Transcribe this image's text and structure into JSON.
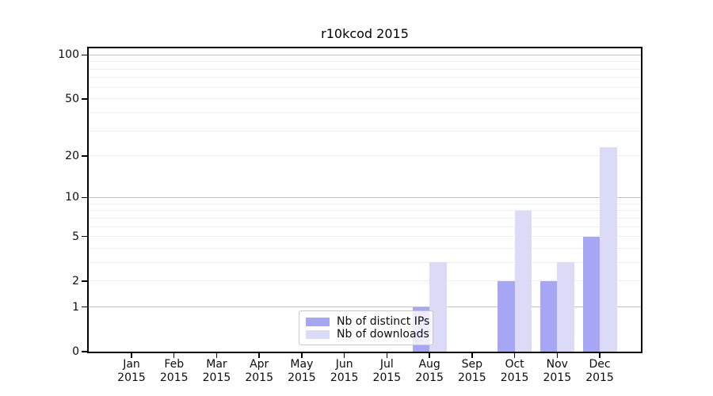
{
  "title": "r10kcod 2015",
  "chart_data": {
    "type": "bar",
    "title": "r10kcod 2015",
    "x_months": [
      "Jan",
      "Feb",
      "Mar",
      "Apr",
      "May",
      "Jun",
      "Jul",
      "Aug",
      "Sep",
      "Oct",
      "Nov",
      "Dec"
    ],
    "x_year": "2015",
    "series": [
      {
        "name": "Nb of distinct IPs",
        "color": "#a6a6f5",
        "values": [
          0,
          0,
          0,
          0,
          0,
          0,
          0,
          1,
          0,
          2,
          2,
          5
        ]
      },
      {
        "name": "Nb of downloads",
        "color": "#dbdbf8",
        "values": [
          0,
          0,
          0,
          0,
          0,
          0,
          0,
          3,
          0,
          8,
          3,
          23
        ]
      }
    ],
    "yscale": "log1p",
    "yticks": [
      0,
      1,
      2,
      5,
      10,
      20,
      50,
      100
    ],
    "ylim": [
      0,
      111
    ],
    "grid": {
      "major_values": [
        1,
        10,
        100
      ],
      "minor_values": [
        2,
        3,
        4,
        5,
        6,
        7,
        8,
        9,
        20,
        30,
        40,
        50,
        60,
        70,
        80,
        90
      ],
      "major_color": "#c2c2c2",
      "minor_color": "#efefef"
    },
    "legend_position": "bottom-center"
  }
}
